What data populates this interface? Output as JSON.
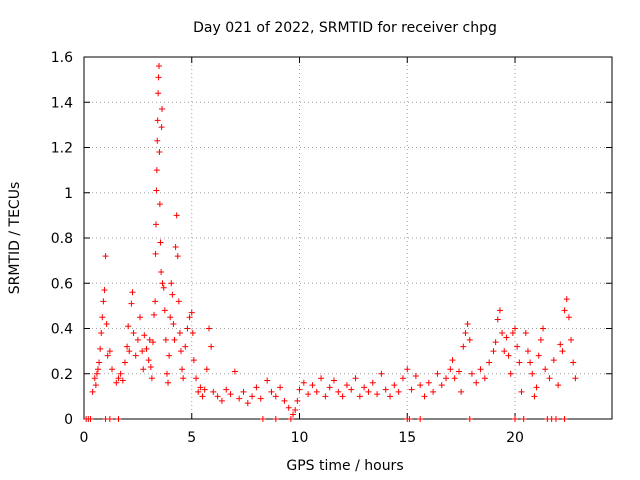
{
  "chart_data": {
    "type": "scatter",
    "title": "Day 021 of 2022, SRMTID for receiver chpg",
    "xlabel": "GPS time / hours",
    "ylabel": "SRMTID / TECUs",
    "xlim": [
      0,
      24.5
    ],
    "ylim": [
      0,
      1.6
    ],
    "xticks": [
      0,
      5,
      10,
      15,
      20
    ],
    "xtick_labels": [
      "0",
      "5",
      "10",
      "15",
      "20"
    ],
    "yticks": [
      0,
      0.2,
      0.4,
      0.6,
      0.8,
      1,
      1.2,
      1.4,
      1.6
    ],
    "ytick_labels": [
      "0",
      "0.2",
      "0.4",
      "0.6",
      "0.8",
      "1",
      "1.2",
      "1.4",
      "1.6"
    ],
    "grid": true,
    "marker": "plus",
    "marker_color": "#ff0000",
    "series": [
      {
        "name": "SRMTID",
        "points": [
          [
            0.1,
            0.0
          ],
          [
            0.2,
            0.0
          ],
          [
            0.3,
            0.0
          ],
          [
            1.0,
            0.0
          ],
          [
            1.2,
            0.0
          ],
          [
            1.6,
            0.0
          ],
          [
            8.3,
            0.0
          ],
          [
            8.9,
            0.0
          ],
          [
            9.6,
            0.0
          ],
          [
            15.0,
            0.0
          ],
          [
            15.1,
            0.0
          ],
          [
            15.6,
            0.0
          ],
          [
            17.9,
            0.0
          ],
          [
            20.0,
            0.0
          ],
          [
            20.4,
            0.0
          ],
          [
            21.5,
            0.0
          ],
          [
            21.7,
            0.0
          ],
          [
            21.9,
            0.0
          ],
          [
            22.3,
            0.0
          ],
          [
            0.4,
            0.12
          ],
          [
            0.5,
            0.18
          ],
          [
            0.55,
            0.15
          ],
          [
            0.6,
            0.2
          ],
          [
            0.65,
            0.22
          ],
          [
            0.7,
            0.25
          ],
          [
            0.75,
            0.31
          ],
          [
            0.8,
            0.38
          ],
          [
            0.85,
            0.45
          ],
          [
            0.9,
            0.52
          ],
          [
            0.95,
            0.57
          ],
          [
            1.0,
            0.72
          ],
          [
            1.05,
            0.42
          ],
          [
            1.1,
            0.28
          ],
          [
            1.2,
            0.3
          ],
          [
            1.3,
            0.22
          ],
          [
            1.5,
            0.16
          ],
          [
            1.6,
            0.18
          ],
          [
            1.7,
            0.2
          ],
          [
            1.8,
            0.17
          ],
          [
            1.9,
            0.25
          ],
          [
            2.0,
            0.32
          ],
          [
            2.05,
            0.41
          ],
          [
            2.1,
            0.3
          ],
          [
            2.2,
            0.51
          ],
          [
            2.25,
            0.56
          ],
          [
            2.3,
            0.38
          ],
          [
            2.4,
            0.28
          ],
          [
            2.5,
            0.35
          ],
          [
            2.6,
            0.45
          ],
          [
            2.7,
            0.3
          ],
          [
            2.75,
            0.22
          ],
          [
            2.8,
            0.37
          ],
          [
            2.9,
            0.31
          ],
          [
            3.0,
            0.26
          ],
          [
            3.05,
            0.35
          ],
          [
            3.1,
            0.23
          ],
          [
            3.15,
            0.18
          ],
          [
            3.2,
            0.34
          ],
          [
            3.25,
            0.46
          ],
          [
            3.3,
            0.52
          ],
          [
            3.32,
            0.73
          ],
          [
            3.34,
            0.86
          ],
          [
            3.36,
            1.01
          ],
          [
            3.38,
            1.1
          ],
          [
            3.4,
            1.23
          ],
          [
            3.42,
            1.32
          ],
          [
            3.44,
            1.44
          ],
          [
            3.46,
            1.51
          ],
          [
            3.48,
            1.56
          ],
          [
            3.5,
            1.18
          ],
          [
            3.52,
            0.95
          ],
          [
            3.55,
            0.78
          ],
          [
            3.58,
            0.65
          ],
          [
            3.6,
            1.29
          ],
          [
            3.62,
            1.37
          ],
          [
            3.64,
            0.6
          ],
          [
            3.7,
            0.58
          ],
          [
            3.75,
            0.48
          ],
          [
            3.8,
            0.35
          ],
          [
            3.85,
            0.2
          ],
          [
            3.9,
            0.16
          ],
          [
            3.95,
            0.28
          ],
          [
            4.0,
            0.45
          ],
          [
            4.05,
            0.6
          ],
          [
            4.1,
            0.55
          ],
          [
            4.15,
            0.42
          ],
          [
            4.2,
            0.35
          ],
          [
            4.25,
            0.76
          ],
          [
            4.3,
            0.9
          ],
          [
            4.35,
            0.72
          ],
          [
            4.4,
            0.52
          ],
          [
            4.45,
            0.38
          ],
          [
            4.5,
            0.3
          ],
          [
            4.55,
            0.22
          ],
          [
            4.6,
            0.18
          ],
          [
            4.7,
            0.32
          ],
          [
            4.8,
            0.4
          ],
          [
            4.9,
            0.45
          ],
          [
            5.0,
            0.47
          ],
          [
            5.05,
            0.38
          ],
          [
            5.1,
            0.26
          ],
          [
            5.2,
            0.18
          ],
          [
            5.3,
            0.12
          ],
          [
            5.4,
            0.14
          ],
          [
            5.5,
            0.1
          ],
          [
            5.6,
            0.13
          ],
          [
            5.7,
            0.22
          ],
          [
            5.8,
            0.4
          ],
          [
            5.9,
            0.32
          ],
          [
            6.0,
            0.12
          ],
          [
            6.2,
            0.1
          ],
          [
            6.4,
            0.08
          ],
          [
            6.6,
            0.13
          ],
          [
            6.8,
            0.11
          ],
          [
            7.0,
            0.21
          ],
          [
            7.2,
            0.09
          ],
          [
            7.4,
            0.12
          ],
          [
            7.6,
            0.07
          ],
          [
            7.8,
            0.1
          ],
          [
            8.0,
            0.14
          ],
          [
            8.2,
            0.09
          ],
          [
            8.5,
            0.17
          ],
          [
            8.7,
            0.12
          ],
          [
            8.9,
            0.1
          ],
          [
            9.1,
            0.14
          ],
          [
            9.3,
            0.08
          ],
          [
            9.5,
            0.05
          ],
          [
            9.7,
            0.02
          ],
          [
            9.8,
            0.04
          ],
          [
            9.9,
            0.08
          ],
          [
            10.0,
            0.13
          ],
          [
            10.2,
            0.16
          ],
          [
            10.4,
            0.11
          ],
          [
            10.6,
            0.15
          ],
          [
            10.8,
            0.12
          ],
          [
            11.0,
            0.18
          ],
          [
            11.2,
            0.1
          ],
          [
            11.4,
            0.14
          ],
          [
            11.6,
            0.17
          ],
          [
            11.8,
            0.12
          ],
          [
            12.0,
            0.1
          ],
          [
            12.2,
            0.15
          ],
          [
            12.4,
            0.13
          ],
          [
            12.6,
            0.18
          ],
          [
            12.8,
            0.1
          ],
          [
            13.0,
            0.14
          ],
          [
            13.2,
            0.12
          ],
          [
            13.4,
            0.16
          ],
          [
            13.6,
            0.11
          ],
          [
            13.8,
            0.2
          ],
          [
            14.0,
            0.13
          ],
          [
            14.2,
            0.1
          ],
          [
            14.4,
            0.15
          ],
          [
            14.6,
            0.12
          ],
          [
            14.8,
            0.18
          ],
          [
            15.0,
            0.22
          ],
          [
            15.2,
            0.13
          ],
          [
            15.4,
            0.19
          ],
          [
            15.6,
            0.15
          ],
          [
            15.8,
            0.1
          ],
          [
            16.0,
            0.16
          ],
          [
            16.2,
            0.12
          ],
          [
            16.4,
            0.2
          ],
          [
            16.6,
            0.15
          ],
          [
            16.8,
            0.18
          ],
          [
            17.0,
            0.22
          ],
          [
            17.1,
            0.26
          ],
          [
            17.2,
            0.18
          ],
          [
            17.4,
            0.21
          ],
          [
            17.5,
            0.12
          ],
          [
            17.6,
            0.32
          ],
          [
            17.7,
            0.38
          ],
          [
            17.8,
            0.42
          ],
          [
            17.9,
            0.35
          ],
          [
            18.0,
            0.2
          ],
          [
            18.2,
            0.16
          ],
          [
            18.4,
            0.22
          ],
          [
            18.6,
            0.18
          ],
          [
            18.8,
            0.25
          ],
          [
            19.0,
            0.3
          ],
          [
            19.1,
            0.34
          ],
          [
            19.2,
            0.44
          ],
          [
            19.3,
            0.48
          ],
          [
            19.4,
            0.38
          ],
          [
            19.5,
            0.3
          ],
          [
            19.6,
            0.36
          ],
          [
            19.7,
            0.28
          ],
          [
            19.8,
            0.2
          ],
          [
            19.9,
            0.38
          ],
          [
            20.0,
            0.4
          ],
          [
            20.1,
            0.32
          ],
          [
            20.2,
            0.25
          ],
          [
            20.3,
            0.12
          ],
          [
            20.5,
            0.38
          ],
          [
            20.6,
            0.3
          ],
          [
            20.7,
            0.25
          ],
          [
            20.8,
            0.2
          ],
          [
            20.9,
            0.1
          ],
          [
            21.0,
            0.14
          ],
          [
            21.1,
            0.28
          ],
          [
            21.2,
            0.35
          ],
          [
            21.3,
            0.4
          ],
          [
            21.4,
            0.22
          ],
          [
            21.6,
            0.18
          ],
          [
            21.8,
            0.26
          ],
          [
            22.0,
            0.15
          ],
          [
            22.1,
            0.33
          ],
          [
            22.2,
            0.3
          ],
          [
            22.3,
            0.48
          ],
          [
            22.4,
            0.53
          ],
          [
            22.5,
            0.45
          ],
          [
            22.6,
            0.35
          ],
          [
            22.7,
            0.25
          ],
          [
            22.8,
            0.18
          ]
        ]
      }
    ]
  }
}
